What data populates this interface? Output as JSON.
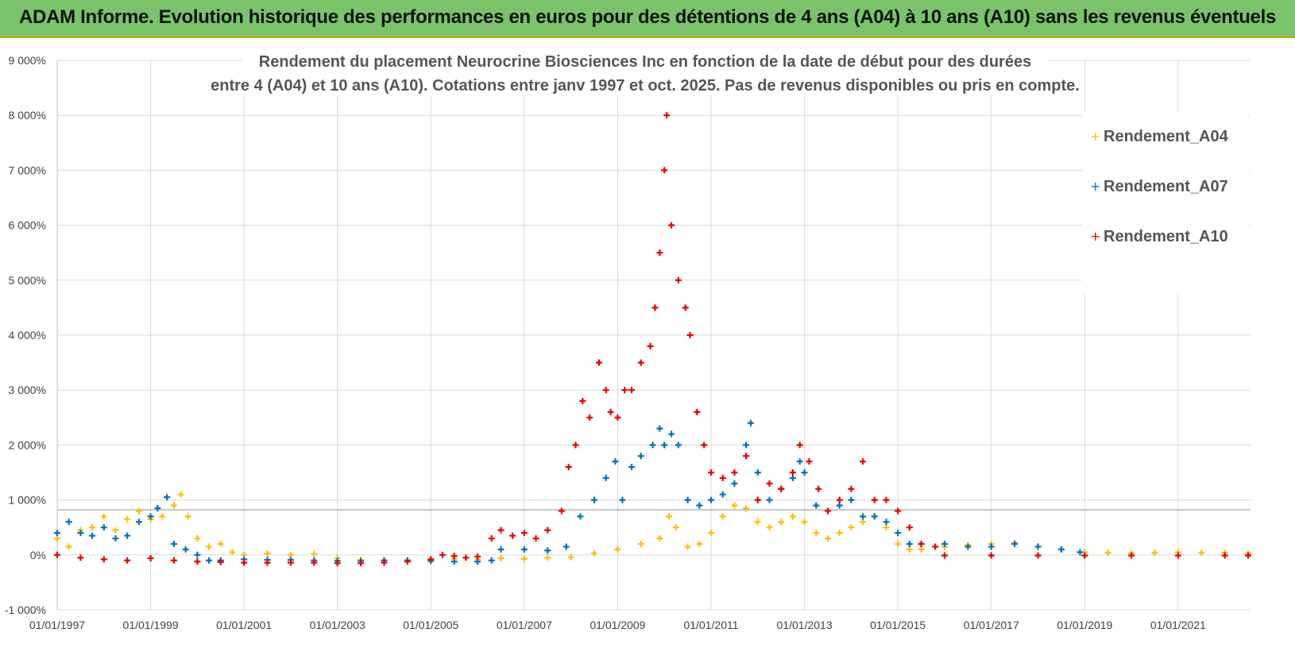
{
  "banner": {
    "title": "ADAM Informe. Evolution historique des performances en euros pour des détentions de 4 ans (A04) à 10 ans (A10) sans les revenus éventuels",
    "color": "#7ac36b"
  },
  "chart_data": {
    "type": "scatter",
    "title_lines": [
      "Rendement du placement Neurocrine Biosciences Inc en fonction de la date de début pour des durées",
      "entre 4 (A04) et 10 ans (A10).  Cotations entre janv 1997 et oct. 2025.  Pas de revenus disponibles ou pris en compte."
    ],
    "xlabel": "",
    "ylabel": "",
    "xlim": [
      1997.0,
      2022.55
    ],
    "ylim": [
      -1000,
      9000
    ],
    "y_ticks": [
      -1000,
      0,
      1000,
      2000,
      3000,
      4000,
      5000,
      6000,
      7000,
      8000,
      9000
    ],
    "y_tick_labels": [
      "-1 000%",
      "0%",
      "1 000%",
      "2 000%",
      "3 000%",
      "4 000%",
      "5 000%",
      "6 000%",
      "7 000%",
      "8 000%",
      "9 000%"
    ],
    "x_ticks": [
      1997,
      1999,
      2001,
      2003,
      2005,
      2007,
      2009,
      2011,
      2013,
      2015,
      2017,
      2019,
      2021
    ],
    "x_tick_labels": [
      "01/01/1997",
      "01/01/1999",
      "01/01/2001",
      "01/01/2003",
      "01/01/2005",
      "01/01/2007",
      "01/01/2009",
      "01/01/2011",
      "01/01/2013",
      "01/01/2015",
      "01/01/2017",
      "01/01/2019",
      "01/01/2021"
    ],
    "grid": true,
    "legend_position": "top-right",
    "series": [
      {
        "name": "Rendement_A04",
        "color": "#ffc000",
        "x": [
          1997.0,
          1997.25,
          1997.5,
          1997.75,
          1998.0,
          1998.25,
          1998.5,
          1998.75,
          1999.0,
          1999.25,
          1999.5,
          1999.65,
          1999.8,
          2000.0,
          2000.25,
          2000.5,
          2000.75,
          2001.0,
          2001.5,
          2002.0,
          2002.5,
          2003.0,
          2003.5,
          2004.0,
          2004.5,
          2005.0,
          2005.5,
          2006.0,
          2006.5,
          2007.0,
          2007.5,
          2008.0,
          2008.5,
          2009.0,
          2009.5,
          2009.9,
          2010.1,
          2010.25,
          2010.5,
          2010.75,
          2011.0,
          2011.25,
          2011.5,
          2011.75,
          2012.0,
          2012.25,
          2012.5,
          2012.75,
          2013.0,
          2013.25,
          2013.5,
          2013.75,
          2014.0,
          2014.25,
          2014.5,
          2014.75,
          2015.0,
          2015.25,
          2015.5,
          2016.0,
          2016.5,
          2017.0,
          2017.5,
          2018.0,
          2018.5,
          2019.0,
          2019.5,
          2020.0,
          2020.5,
          2021.0,
          2021.5,
          2022.0,
          2022.5
        ],
        "y": [
          300,
          150,
          450,
          500,
          700,
          450,
          650,
          800,
          650,
          700,
          900,
          1100,
          700,
          300,
          150,
          200,
          50,
          0,
          30,
          0,
          20,
          -60,
          -90,
          -100,
          -100,
          -80,
          -70,
          -80,
          -60,
          -70,
          -50,
          -40,
          30,
          100,
          200,
          300,
          700,
          500,
          150,
          200,
          400,
          700,
          900,
          850,
          600,
          500,
          600,
          700,
          600,
          400,
          300,
          400,
          500,
          600,
          700,
          500,
          200,
          100,
          100,
          150,
          180,
          200,
          220,
          150,
          100,
          50,
          40,
          30,
          40,
          50,
          40,
          40,
          30
        ]
      },
      {
        "name": "Rendement_A07",
        "color": "#0070c0",
        "x": [
          1997.0,
          1997.25,
          1997.5,
          1997.75,
          1998.0,
          1998.25,
          1998.5,
          1998.75,
          1999.0,
          1999.15,
          1999.35,
          1999.5,
          1999.75,
          2000.0,
          2000.25,
          2000.5,
          2001.0,
          2001.5,
          2002.0,
          2002.5,
          2003.0,
          2003.5,
          2004.0,
          2004.5,
          2005.0,
          2005.5,
          2006.0,
          2006.3,
          2006.5,
          2007.0,
          2007.5,
          2007.9,
          2008.2,
          2008.5,
          2008.75,
          2008.95,
          2009.1,
          2009.3,
          2009.5,
          2009.75,
          2009.9,
          2010.0,
          2010.15,
          2010.3,
          2010.5,
          2010.75,
          2011.0,
          2011.25,
          2011.5,
          2011.75,
          2011.85,
          2012.0,
          2012.25,
          2012.5,
          2012.75,
          2012.9,
          2013.0,
          2013.25,
          2013.5,
          2013.75,
          2014.0,
          2014.25,
          2014.5,
          2014.75,
          2015.0,
          2015.25,
          2015.5,
          2016.0,
          2016.5,
          2017.0,
          2017.5,
          2018.0,
          2018.5,
          2018.9
        ],
        "y": [
          400,
          600,
          400,
          350,
          500,
          300,
          350,
          600,
          700,
          850,
          1050,
          200,
          100,
          0,
          -100,
          -100,
          -80,
          -90,
          -90,
          -100,
          -110,
          -110,
          -100,
          -100,
          -110,
          -120,
          -120,
          -100,
          100,
          100,
          80,
          150,
          700,
          1000,
          1400,
          1700,
          1000,
          1600,
          1800,
          2000,
          2300,
          2000,
          2200,
          2000,
          1000,
          900,
          1000,
          1100,
          1300,
          2000,
          2400,
          1500,
          1000,
          1200,
          1400,
          1700,
          1500,
          900,
          800,
          900,
          1000,
          700,
          700,
          600,
          400,
          200,
          200,
          200,
          150,
          150,
          200,
          150,
          100,
          50
        ]
      },
      {
        "name": "Rendement_A10",
        "color": "#e80000",
        "x": [
          1997.0,
          1997.5,
          1998.0,
          1998.5,
          1999.0,
          1999.5,
          2000.0,
          2000.5,
          2001.0,
          2001.5,
          2002.0,
          2002.5,
          2003.0,
          2003.5,
          2004.0,
          2004.5,
          2005.0,
          2005.25,
          2005.5,
          2005.75,
          2006.0,
          2006.3,
          2006.5,
          2006.75,
          2007.0,
          2007.25,
          2007.5,
          2007.8,
          2007.95,
          2008.1,
          2008.25,
          2008.4,
          2008.6,
          2008.75,
          2008.85,
          2009.0,
          2009.15,
          2009.3,
          2009.5,
          2009.7,
          2009.8,
          2009.9,
          2010.0,
          2010.05,
          2010.15,
          2010.3,
          2010.45,
          2010.55,
          2010.7,
          2010.85,
          2011.0,
          2011.25,
          2011.5,
          2011.75,
          2012.0,
          2012.25,
          2012.5,
          2012.75,
          2012.9,
          2013.1,
          2013.3,
          2013.5,
          2013.75,
          2014.0,
          2014.25,
          2014.5,
          2014.75,
          2015.0,
          2015.25,
          2015.5,
          2015.8,
          2016.0,
          2017.0,
          2018.0,
          2019.0,
          2020.0,
          2021.0,
          2022.0,
          2022.5
        ],
        "y": [
          0,
          -50,
          -80,
          -100,
          -60,
          -100,
          -120,
          -130,
          -140,
          -140,
          -140,
          -140,
          -150,
          -150,
          -140,
          -120,
          -80,
          0,
          -20,
          -50,
          -30,
          300,
          450,
          350,
          400,
          300,
          450,
          800,
          1600,
          2000,
          2800,
          2500,
          3500,
          3000,
          2600,
          2500,
          3000,
          3000,
          3500,
          3800,
          4500,
          5500,
          7000,
          8000,
          6000,
          5000,
          4500,
          4000,
          2600,
          2000,
          1500,
          1400,
          1500,
          1800,
          1000,
          1300,
          1200,
          1500,
          2000,
          1700,
          1200,
          800,
          1000,
          1200,
          1700,
          1000,
          1000,
          800,
          500,
          200,
          150,
          -10,
          -10,
          -10,
          -10,
          -10,
          -10,
          -10,
          -10
        ]
      }
    ]
  }
}
